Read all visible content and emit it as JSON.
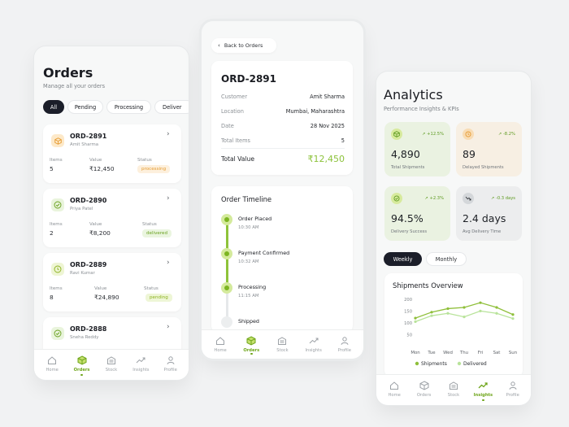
{
  "nav": [
    {
      "label": "Home",
      "icon": "home-icon"
    },
    {
      "label": "Orders",
      "icon": "box-icon"
    },
    {
      "label": "Stock",
      "icon": "warehouse-icon"
    },
    {
      "label": "Insights",
      "icon": "trend-icon"
    },
    {
      "label": "Profile",
      "icon": "user-icon"
    }
  ],
  "orders_screen": {
    "title": "Orders",
    "subtitle": "Manage all your orders",
    "filters": [
      "All",
      "Pending",
      "Processing",
      "Deliver"
    ],
    "labels": {
      "items": "Items",
      "value": "Value",
      "status": "Status"
    },
    "orders": [
      {
        "id": "ORD-2891",
        "customer": "Amit Sharma",
        "items": "5",
        "value": "₹12,450",
        "status": "processing",
        "icon": "box-icon"
      },
      {
        "id": "ORD-2890",
        "customer": "Priya Patel",
        "items": "2",
        "value": "₹8,200",
        "status": "delivered",
        "icon": "check-circle-icon"
      },
      {
        "id": "ORD-2889",
        "customer": "Ravi Kumar",
        "items": "8",
        "value": "₹24,890",
        "status": "pending",
        "icon": "clock-icon"
      },
      {
        "id": "ORD-2888",
        "customer": "Sneha Reddy",
        "icon": "check-circle-icon"
      }
    ]
  },
  "detail_screen": {
    "back_label": "Back to Orders",
    "order_id": "ORD-2891",
    "fields": [
      {
        "label": "Customer",
        "value": "Amit Sharma"
      },
      {
        "label": "Location",
        "value": "Mumbai, Maharashtra"
      },
      {
        "label": "Date",
        "value": "28 Nov 2025"
      },
      {
        "label": "Total Items",
        "value": "5"
      }
    ],
    "total_label": "Total Value",
    "total_value": "₹12,450",
    "timeline_title": "Order Timeline",
    "timeline": [
      {
        "label": "Order Placed",
        "time": "10:30 AM",
        "done": true
      },
      {
        "label": "Payment Confirmed",
        "time": "10:32 AM",
        "done": true
      },
      {
        "label": "Processing",
        "time": "11:15 AM",
        "done": true
      },
      {
        "label": "Shipped",
        "time": "",
        "done": false
      }
    ]
  },
  "analytics_screen": {
    "title": "Analytics",
    "subtitle": "Performance Insights & KPIs",
    "kpis": [
      {
        "value": "4,890",
        "label": "Total Shipments",
        "delta": "+12.5%",
        "bg": "#eaf2e1",
        "icon_bg": "#d7ea9d",
        "icon": "box-icon",
        "delta_color": "#5e9b21"
      },
      {
        "value": "89",
        "label": "Delayed Shipments",
        "delta": "-8.2%",
        "bg": "#f7efe3",
        "icon_bg": "#f8dcb4",
        "icon": "clock-icon",
        "delta_color": "#5e9b21"
      },
      {
        "value": "94.5%",
        "label": "Delivery Success",
        "delta": "+2.3%",
        "bg": "#eaf2e1",
        "icon_bg": "#d7ea9d",
        "icon": "check-circle-icon",
        "delta_color": "#5e9b21"
      },
      {
        "value": "2.4 days",
        "label": "Avg Delivery Time",
        "delta": "-0.3 days",
        "bg": "#ecedee",
        "icon_bg": "#d4d7da",
        "icon": "trend-down-icon",
        "delta_color": "#5e9b21"
      }
    ],
    "periods": [
      "Weekly",
      "Monthly"
    ],
    "active_period": "Weekly"
  },
  "chart_data": {
    "type": "line",
    "title": "Shipments Overview",
    "categories": [
      "Mon",
      "Tue",
      "Wed",
      "Thu",
      "Fri",
      "Sat",
      "Sun"
    ],
    "yticks": [
      50,
      100,
      150,
      200
    ],
    "ylim": [
      0,
      220
    ],
    "grid": false,
    "legend": "bottom",
    "series": [
      {
        "name": "Shipments",
        "color": "#8fbf3a",
        "values": [
          120,
          145,
          160,
          165,
          185,
          165,
          135
        ]
      },
      {
        "name": "Delivered",
        "color": "#b8e39a",
        "values": [
          105,
          130,
          140,
          125,
          150,
          140,
          118
        ]
      }
    ]
  },
  "colors": {
    "accent": "#7cb521",
    "dark": "#1a1c26"
  }
}
